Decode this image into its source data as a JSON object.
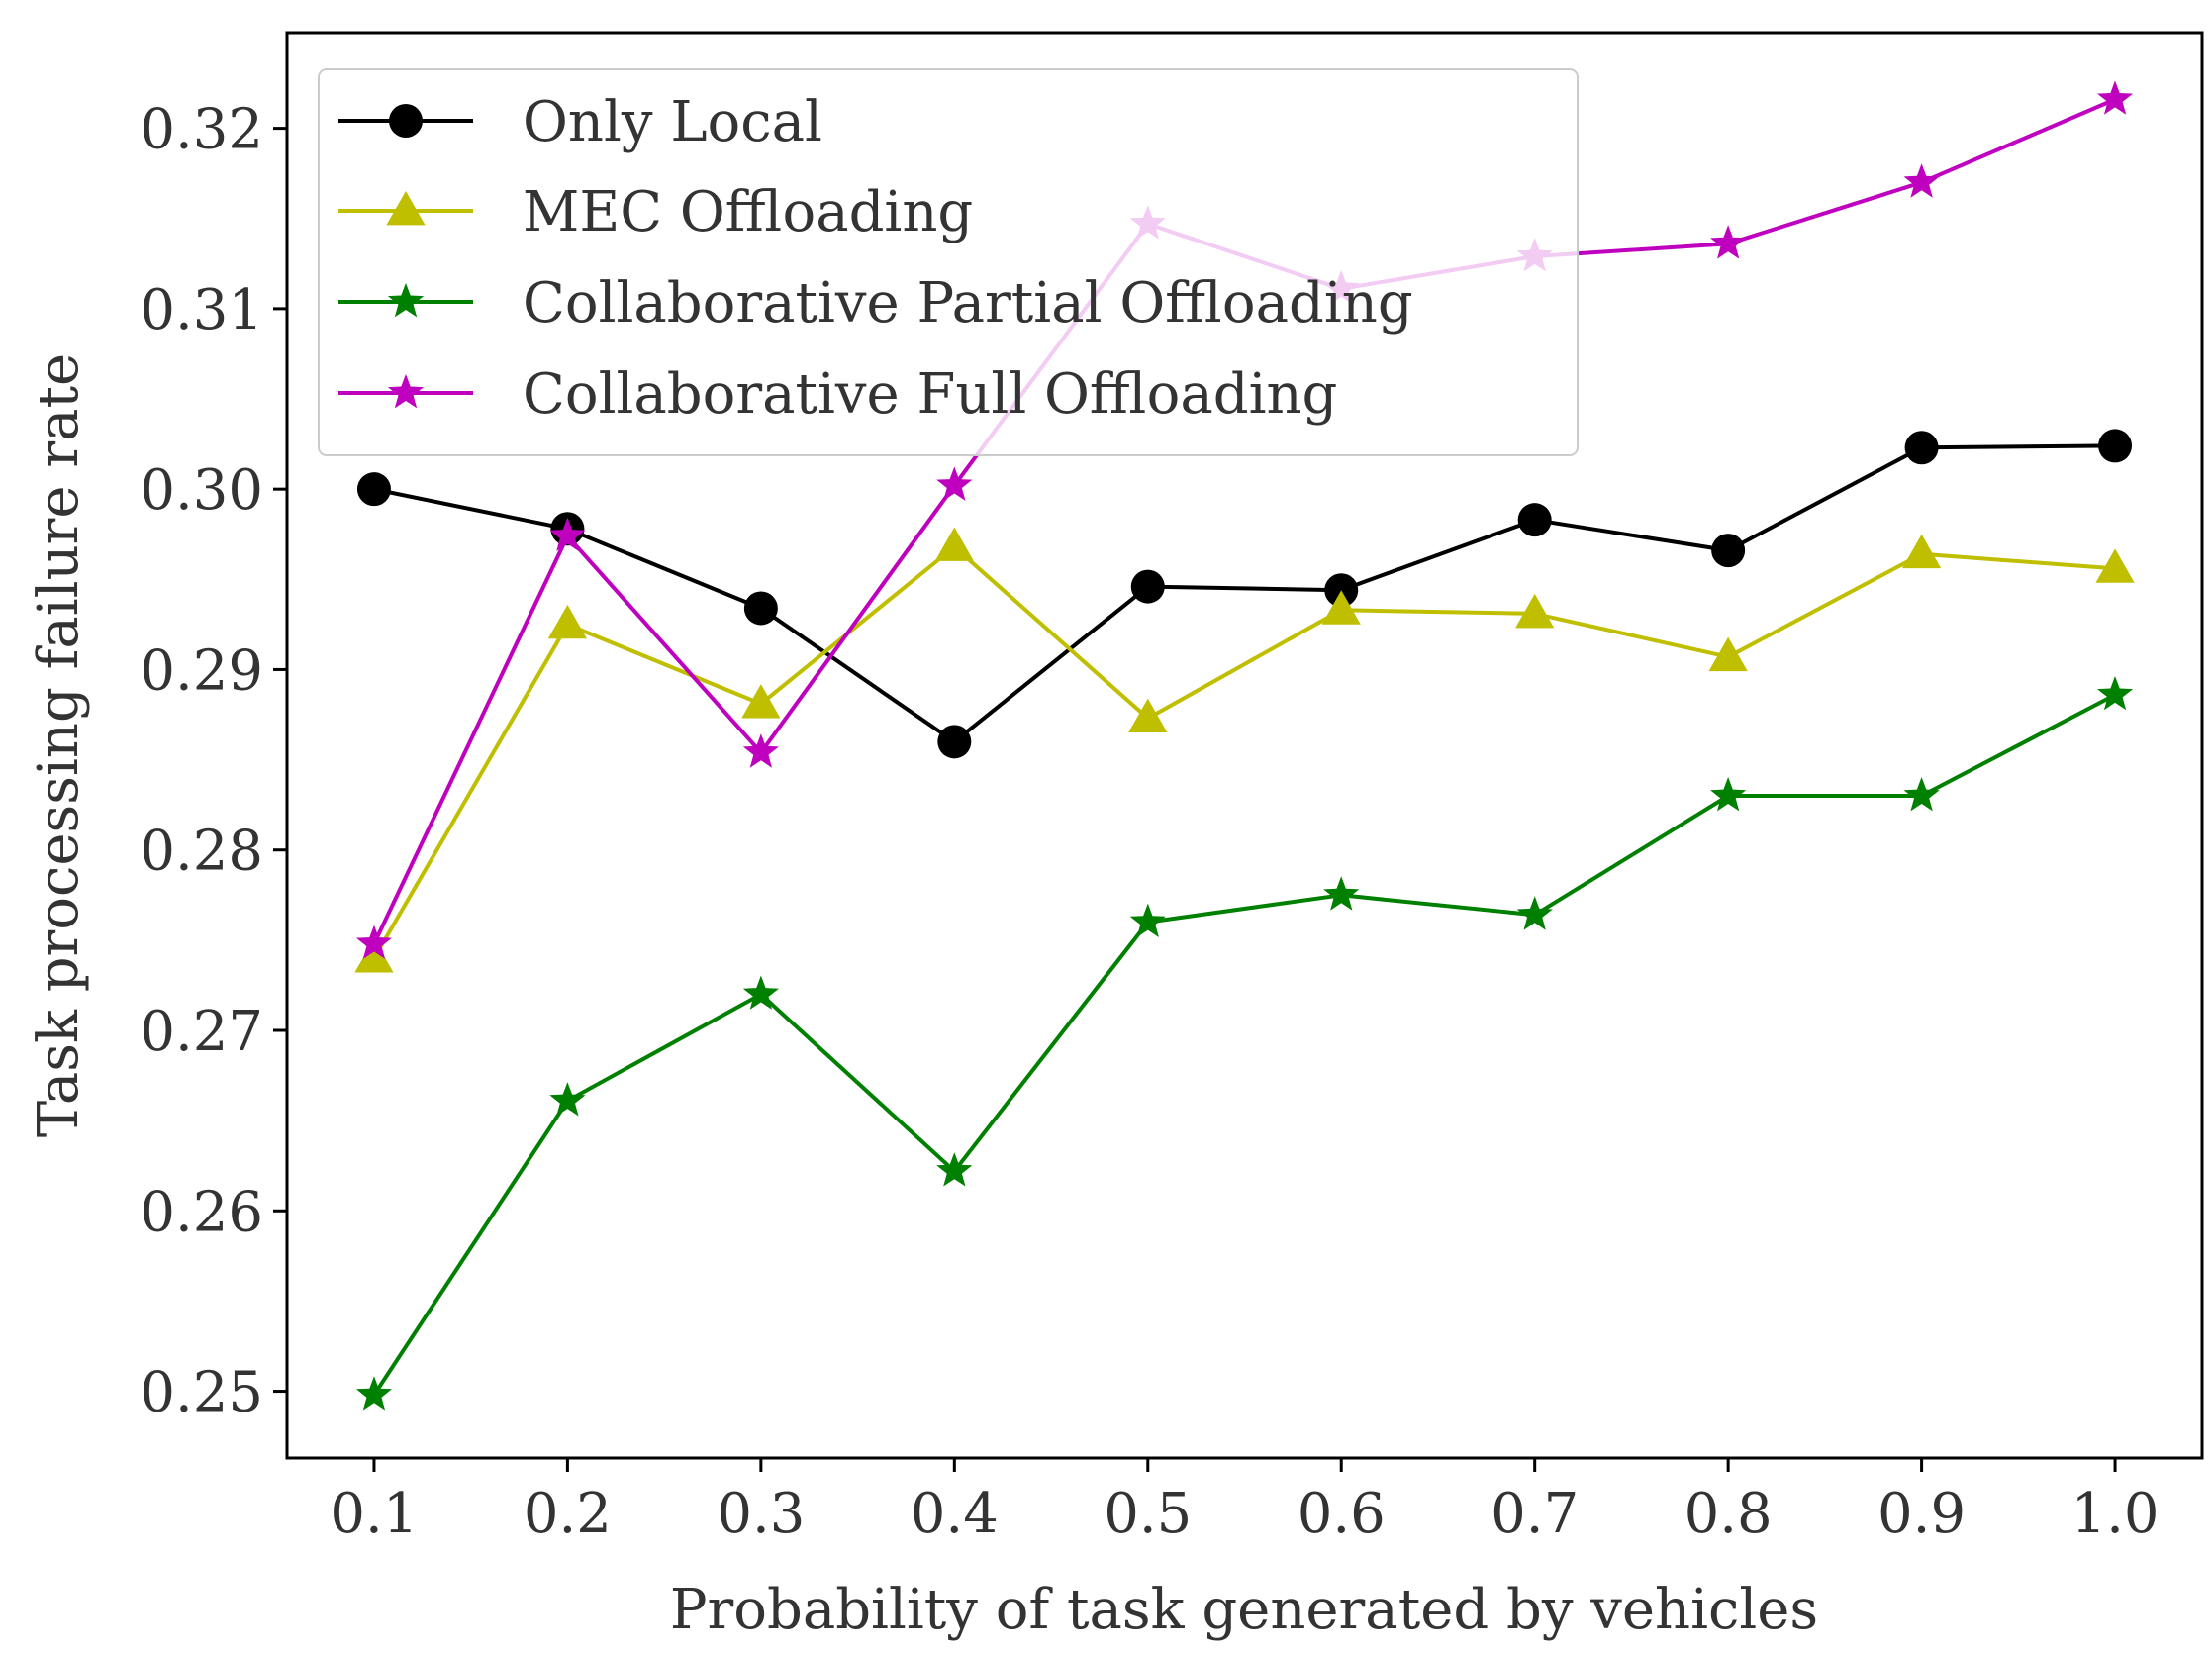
{
  "chart_data": {
    "type": "line",
    "title": "",
    "xlabel": "Probability of task generated by vehicles",
    "ylabel": "Task processing failure rate",
    "x": [
      0.1,
      0.2,
      0.3,
      0.4,
      0.5,
      0.6,
      0.7,
      0.8,
      0.9,
      1.0
    ],
    "xticks": [
      "0.1",
      "0.2",
      "0.3",
      "0.4",
      "0.5",
      "0.6",
      "0.7",
      "0.8",
      "0.9",
      "1.0"
    ],
    "yticks": [
      "0.25",
      "0.26",
      "0.27",
      "0.28",
      "0.29",
      "0.30",
      "0.31",
      "0.32"
    ],
    "ytick_values": [
      0.25,
      0.26,
      0.27,
      0.28,
      0.29,
      0.3,
      0.31,
      0.32
    ],
    "xlim": [
      0.055,
      1.045
    ],
    "ylim": [
      0.2463,
      0.3253
    ],
    "grid": false,
    "legend_position": "top-left",
    "series": [
      {
        "name": "Only Local",
        "color": "#000000",
        "marker": "circle",
        "values": [
          0.3,
          0.2978,
          0.2934,
          0.286,
          0.2946,
          0.2944,
          0.2983,
          0.2966,
          0.3023,
          0.3024
        ]
      },
      {
        "name": "MEC Offloading",
        "color": "#bfbf00",
        "marker": "triangle",
        "values": [
          0.274,
          0.2925,
          0.2881,
          0.2968,
          0.2873,
          0.2933,
          0.2931,
          0.2907,
          0.2964,
          0.2956
        ]
      },
      {
        "name": "Collaborative Partial Offloading",
        "color": "#008000",
        "marker": "star",
        "values": [
          0.2498,
          0.2661,
          0.272,
          0.2622,
          0.276,
          0.2775,
          0.2764,
          0.283,
          0.283,
          0.2886
        ]
      },
      {
        "name": "Collaborative Full Offloading",
        "color": "#bf00bf",
        "marker": "star",
        "values": [
          0.2748,
          0.2974,
          0.2854,
          0.3002,
          0.3147,
          0.3111,
          0.3129,
          0.3136,
          0.317,
          0.3216
        ]
      }
    ]
  }
}
